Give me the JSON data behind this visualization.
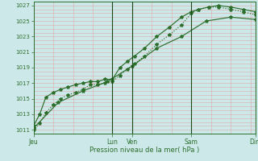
{
  "xlabel": "Pression niveau de la mer( hPa )",
  "bg_color": "#cce8e8",
  "grid_color": "#ddaaaa",
  "line_color": "#2d6e2d",
  "ylim": [
    1010.5,
    1027.5
  ],
  "yticks": [
    1011,
    1013,
    1015,
    1017,
    1019,
    1021,
    1023,
    1025,
    1027
  ],
  "xtick_positions": [
    0,
    3.2,
    4.0,
    6.4,
    9.0
  ],
  "xtick_labels": [
    "Jeu",
    "Lun",
    "Ven",
    "Sam",
    "Dim"
  ],
  "line1_x": [
    0,
    0.25,
    0.5,
    0.8,
    1.1,
    1.4,
    1.7,
    2.0,
    2.3,
    2.6,
    2.9,
    3.2,
    3.5,
    3.8,
    4.1,
    4.5,
    5.0,
    5.5,
    6.0,
    6.4,
    6.7,
    7.1,
    7.5,
    8.0,
    8.5,
    9.0
  ],
  "line1_y": [
    1011.0,
    1011.8,
    1013.2,
    1014.2,
    1015.0,
    1015.5,
    1015.8,
    1016.2,
    1016.8,
    1016.8,
    1017.0,
    1017.2,
    1018.0,
    1018.8,
    1019.5,
    1020.5,
    1022.0,
    1023.2,
    1024.5,
    1026.0,
    1026.5,
    1026.8,
    1026.8,
    1026.5,
    1026.2,
    1025.8
  ],
  "line2_x": [
    0,
    0.25,
    0.5,
    0.8,
    1.1,
    1.4,
    1.7,
    2.0,
    2.3,
    2.6,
    2.9,
    3.2,
    3.5,
    3.8,
    4.1,
    4.5,
    5.0,
    5.5,
    6.0,
    6.4,
    6.7,
    7.1,
    7.5,
    8.0,
    8.5,
    9.0
  ],
  "line2_y": [
    1011.5,
    1013.0,
    1015.2,
    1015.8,
    1016.2,
    1016.5,
    1016.8,
    1017.0,
    1017.2,
    1017.2,
    1017.5,
    1017.5,
    1019.0,
    1019.8,
    1020.5,
    1021.5,
    1023.0,
    1024.2,
    1025.5,
    1026.2,
    1026.5,
    1026.8,
    1027.0,
    1026.8,
    1026.5,
    1026.2
  ],
  "line3_x": [
    0,
    1.0,
    2.0,
    3.0,
    4.0,
    5.0,
    6.0,
    7.0,
    8.0,
    9.0
  ],
  "line3_y": [
    1011.2,
    1014.5,
    1016.0,
    1017.2,
    1019.2,
    1021.5,
    1023.0,
    1025.0,
    1025.5,
    1025.2
  ],
  "vlines": [
    3.2,
    4.0,
    6.4,
    9.0
  ],
  "xmin": 0,
  "xmax": 9.0
}
